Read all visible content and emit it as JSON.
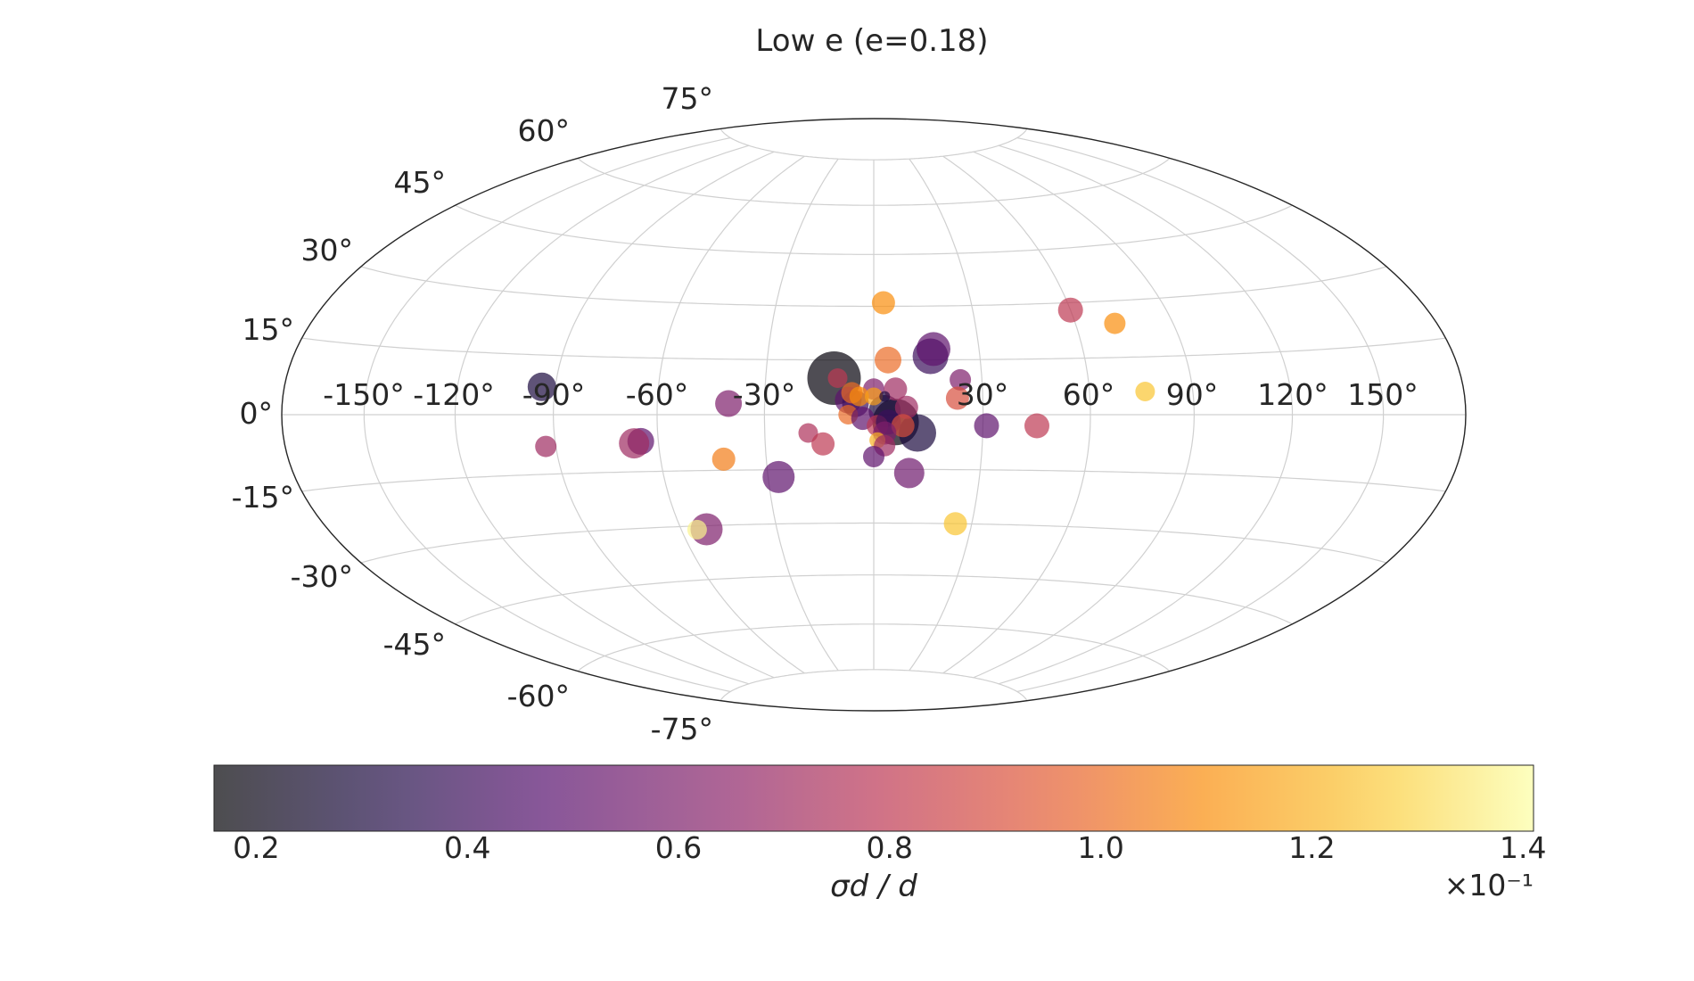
{
  "chart_data": {
    "type": "scatter",
    "projection": "hammer",
    "title": "Low e (e=0.18)",
    "lon_ticks": [
      -150,
      -120,
      -90,
      -60,
      -30,
      30,
      60,
      90,
      120,
      150
    ],
    "lat_ticks": [
      -75,
      -60,
      -45,
      -30,
      -15,
      0,
      15,
      30,
      45,
      60,
      75
    ],
    "lon_tick_labels": [
      "-150°",
      "-120°",
      "-90°",
      "-60°",
      "-30°",
      "30°",
      "60°",
      "90°",
      "120°",
      "150°"
    ],
    "lat_tick_labels": [
      "-75°",
      "-60°",
      "-45°",
      "-30°",
      "-15°",
      "0°",
      "15°",
      "30°",
      "45°",
      "60°",
      "75°"
    ],
    "grid": true,
    "colorbar": {
      "label": "σd / d",
      "range": [
        0.016,
        0.141
      ],
      "ticks": [
        0.2,
        0.4,
        0.6,
        0.8,
        1.0,
        1.2,
        1.4
      ],
      "tick_labels": [
        "0.2",
        "0.4",
        "0.6",
        "0.8",
        "1.0",
        "1.2",
        "1.4"
      ],
      "multiplier_label": "×10⁻¹",
      "cmap": "inferno",
      "orientation": "horizontal"
    },
    "points": [
      {
        "lon": -11,
        "lat": 10,
        "c": 0.018,
        "s": 3.0
      },
      {
        "lon": 6,
        "lat": -2,
        "c": 0.018,
        "s": 2.6
      },
      {
        "lon": 12,
        "lat": -5,
        "c": 0.03,
        "s": 2.1
      },
      {
        "lon": 16,
        "lat": 16,
        "c": 0.04,
        "s": 2.0
      },
      {
        "lon": 17,
        "lat": 18,
        "c": 0.05,
        "s": 1.9
      },
      {
        "lon": 3,
        "lat": 1,
        "c": 0.03,
        "s": 1.8
      },
      {
        "lon": -94,
        "lat": 7,
        "c": 0.03,
        "s": 1.6
      },
      {
        "lon": -27,
        "lat": -17,
        "c": 0.05,
        "s": 1.8
      },
      {
        "lon": 10,
        "lat": -16,
        "c": 0.055,
        "s": 1.7
      },
      {
        "lon": -52,
        "lat": -31,
        "c": 0.06,
        "s": 1.8
      },
      {
        "lon": -65,
        "lat": -7,
        "c": 0.05,
        "s": 1.5
      },
      {
        "lon": -67,
        "lat": -7.5,
        "c": 0.07,
        "s": 1.7
      },
      {
        "lon": -93,
        "lat": -8,
        "c": 0.07,
        "s": 1.2
      },
      {
        "lon": -40,
        "lat": 3,
        "c": 0.06,
        "s": 1.5
      },
      {
        "lon": -7,
        "lat": 4,
        "c": 0.05,
        "s": 1.5
      },
      {
        "lon": -5,
        "lat": 3,
        "c": 0.04,
        "s": 1.5
      },
      {
        "lon": -10,
        "lat": 10,
        "c": 0.08,
        "s": 1.1
      },
      {
        "lon": 0,
        "lat": 7,
        "c": 0.06,
        "s": 1.2
      },
      {
        "lon": 6,
        "lat": 7,
        "c": 0.07,
        "s": 1.3
      },
      {
        "lon": 9,
        "lat": 2,
        "c": 0.07,
        "s": 1.3
      },
      {
        "lon": 24,
        "lat": 9.5,
        "c": 0.06,
        "s": 1.2
      },
      {
        "lon": 23,
        "lat": 4.5,
        "c": 0.09,
        "s": 1.3
      },
      {
        "lon": 31,
        "lat": -3,
        "c": 0.05,
        "s": 1.4
      },
      {
        "lon": 45,
        "lat": -3,
        "c": 0.08,
        "s": 1.4
      },
      {
        "lon": 60,
        "lat": 28,
        "c": 0.08,
        "s": 1.4
      },
      {
        "lon": 72,
        "lat": 24,
        "c": 0.11,
        "s": 1.2
      },
      {
        "lon": 76,
        "lat": 6,
        "c": 0.125,
        "s": 1.1
      },
      {
        "lon": 3,
        "lat": 31,
        "c": 0.11,
        "s": 1.3
      },
      {
        "lon": 4,
        "lat": 15,
        "c": 0.1,
        "s": 1.5
      },
      {
        "lon": -6,
        "lat": 6,
        "c": 0.1,
        "s": 1.2
      },
      {
        "lon": -4,
        "lat": 5,
        "c": 0.11,
        "s": 1.1
      },
      {
        "lon": 0,
        "lat": 5,
        "c": 0.115,
        "s": 1.0
      },
      {
        "lon": 3,
        "lat": 5,
        "c": 0.03,
        "s": 0.6
      },
      {
        "lon": -7,
        "lat": 0,
        "c": 0.1,
        "s": 1.1
      },
      {
        "lon": -3,
        "lat": -1,
        "c": 0.05,
        "s": 1.3
      },
      {
        "lon": 1,
        "lat": -3,
        "c": 0.08,
        "s": 1.2
      },
      {
        "lon": 4,
        "lat": -2,
        "c": 0.04,
        "s": 1.4
      },
      {
        "lon": 8,
        "lat": -3,
        "c": 0.09,
        "s": 1.3
      },
      {
        "lon": 3,
        "lat": -5,
        "c": 0.06,
        "s": 1.3
      },
      {
        "lon": 1,
        "lat": -7,
        "c": 0.12,
        "s": 0.9
      },
      {
        "lon": 3,
        "lat": -8.5,
        "c": 0.07,
        "s": 1.2
      },
      {
        "lon": -18,
        "lat": -5,
        "c": 0.075,
        "s": 1.1
      },
      {
        "lon": -14,
        "lat": -8,
        "c": 0.08,
        "s": 1.3
      },
      {
        "lon": 0,
        "lat": -11.5,
        "c": 0.05,
        "s": 1.2
      },
      {
        "lon": -42,
        "lat": -12,
        "c": 0.105,
        "s": 1.3
      },
      {
        "lon": 25,
        "lat": -30,
        "c": 0.125,
        "s": 1.3
      },
      {
        "lon": -55,
        "lat": -31,
        "c": 0.138,
        "s": 1.1
      }
    ]
  }
}
